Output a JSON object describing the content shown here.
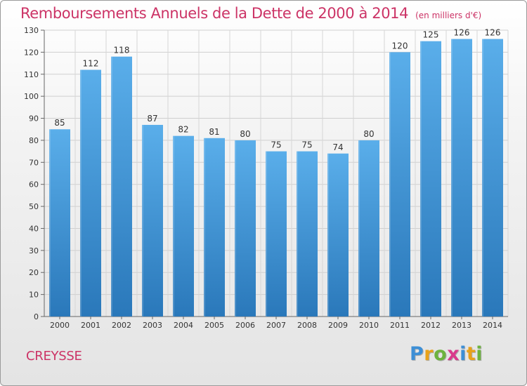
{
  "title": "Remboursements Annuels de la Dette de 2000 à 2014",
  "unit_label": "(en milliers d'€)",
  "commune": "CREYSSE",
  "logo": {
    "letters": [
      "P",
      "r",
      "o",
      "x",
      "i",
      "t",
      "i"
    ],
    "colors": [
      "#3d8fd6",
      "#e8a21a",
      "#6db33f",
      "#d93a8c",
      "#3d8fd6",
      "#e8a21a",
      "#6db33f"
    ]
  },
  "colors": {
    "bar_top": "#5aaeea",
    "bar_bottom": "#2a78ba",
    "title": "#cc3366"
  },
  "chart_data": {
    "type": "bar",
    "title": "Remboursements Annuels de la Dette de 2000 à 2014",
    "xlabel": "",
    "ylabel": "",
    "categories": [
      "2000",
      "2001",
      "2002",
      "2003",
      "2004",
      "2005",
      "2006",
      "2007",
      "2008",
      "2009",
      "2010",
      "2011",
      "2012",
      "2013",
      "2014"
    ],
    "values": [
      85,
      112,
      118,
      87,
      82,
      81,
      80,
      75,
      75,
      74,
      80,
      120,
      125,
      126,
      126
    ],
    "ylim": [
      0,
      130
    ],
    "yticks": [
      0,
      10,
      20,
      30,
      40,
      50,
      60,
      70,
      80,
      90,
      100,
      110,
      120,
      130
    ],
    "grid": true,
    "legend": "none"
  }
}
